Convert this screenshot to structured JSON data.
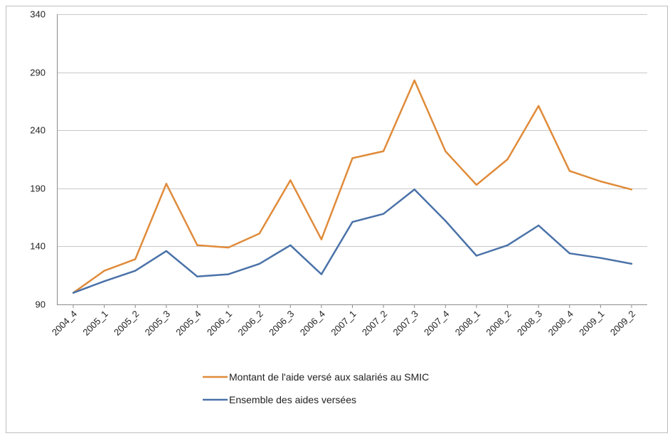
{
  "chart_data": {
    "type": "line",
    "title": "",
    "xlabel": "",
    "ylabel": "",
    "categories": [
      "2004_4",
      "2005_1",
      "2005_2",
      "2005_3",
      "2005_4",
      "2006_1",
      "2006_2",
      "2006_3",
      "2006_4",
      "2007_1",
      "2007_2",
      "2007_3",
      "2007_4",
      "2008_1",
      "2008_2",
      "2008_3",
      "2008_4",
      "2009_1",
      "2009_2"
    ],
    "ylim": [
      90,
      340
    ],
    "yticks": [
      "90",
      "140",
      "190",
      "240",
      "290",
      "340"
    ],
    "grid": true,
    "legend_position": "bottom",
    "series": [
      {
        "name": "Montant de l'aide versé aux salariés au SMIC",
        "color": "#E08B3A",
        "values": [
          100,
          119,
          129,
          194,
          141,
          139,
          151,
          197,
          146,
          216,
          222,
          283,
          222,
          193,
          215,
          261,
          205,
          196,
          189
        ]
      },
      {
        "name": "Ensemble des aides versées",
        "color": "#4A72A8",
        "values": [
          100,
          110,
          119,
          136,
          114,
          116,
          125,
          141,
          116,
          161,
          168,
          189,
          162,
          132,
          141,
          158,
          134,
          130,
          125
        ]
      }
    ]
  }
}
